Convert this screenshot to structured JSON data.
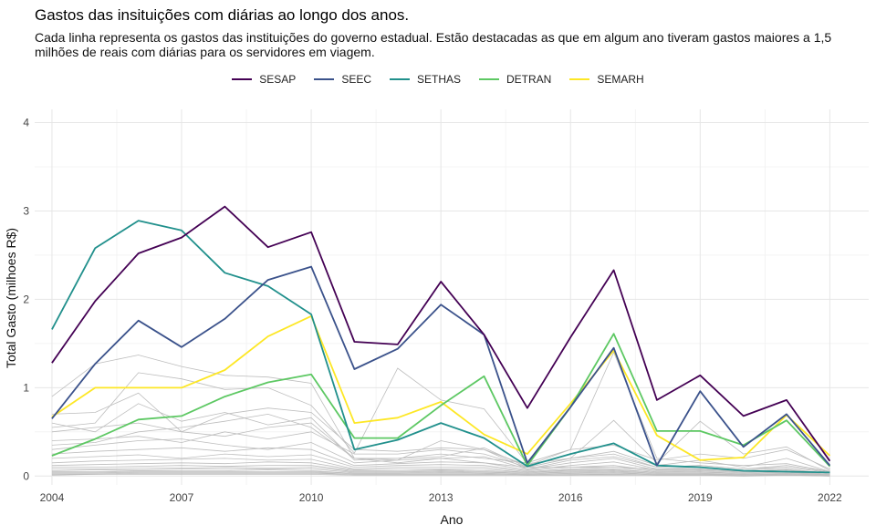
{
  "chart_data": {
    "type": "line",
    "title": "Gastos das insituições com diárias ao longo dos anos.",
    "subtitle": "Cada linha representa os gastos das instituições do governo estadual. Estão destacadas as que em algum ano tiveram gastos maiores a 1,5 milhões de reais com diárias para os servidores em viagem.",
    "xlabel": "Ano",
    "ylabel": "Total Gasto (milhoes R$)",
    "x": [
      2004,
      2005,
      2006,
      2007,
      2008,
      2009,
      2010,
      2011,
      2012,
      2013,
      2014,
      2015,
      2016,
      2017,
      2018,
      2019,
      2020,
      2021,
      2022
    ],
    "xticks": [
      2004,
      2007,
      2010,
      2013,
      2016,
      2019,
      2022
    ],
    "yticks": [
      0,
      1,
      2,
      3,
      4
    ],
    "xlim": [
      2003.6,
      2022.9
    ],
    "ylim": [
      -0.1,
      4.15
    ],
    "grid": true,
    "legend_position": "top",
    "series": [
      {
        "name": "SESAP",
        "color": "#440154",
        "values": [
          1.28,
          1.98,
          2.52,
          2.7,
          3.05,
          2.59,
          2.76,
          1.52,
          1.49,
          2.2,
          1.6,
          0.77,
          1.57,
          2.33,
          0.86,
          1.14,
          0.68,
          0.86,
          0.17
        ]
      },
      {
        "name": "SEEC",
        "color": "#3B528B",
        "values": [
          0.65,
          1.27,
          1.76,
          1.46,
          1.78,
          2.22,
          2.37,
          1.21,
          1.44,
          1.94,
          1.6,
          0.15,
          0.78,
          1.45,
          0.12,
          0.96,
          0.33,
          0.7,
          0.12
        ]
      },
      {
        "name": "SETHAS",
        "color": "#21908C",
        "values": [
          1.66,
          2.58,
          2.89,
          2.78,
          2.3,
          2.15,
          1.83,
          0.3,
          0.41,
          0.6,
          0.43,
          0.11,
          0.25,
          0.37,
          0.12,
          0.1,
          0.06,
          0.05,
          0.04
        ]
      },
      {
        "name": "DETRAN",
        "color": "#5DC863",
        "values": [
          0.23,
          0.42,
          0.64,
          0.68,
          0.9,
          1.06,
          1.15,
          0.43,
          0.43,
          0.8,
          1.13,
          0.12,
          0.78,
          1.61,
          0.51,
          0.51,
          0.35,
          0.63,
          0.11
        ]
      },
      {
        "name": "SEMARH",
        "color": "#FDE725",
        "values": [
          0.67,
          1.0,
          1.0,
          1.0,
          1.2,
          1.58,
          1.81,
          0.6,
          0.66,
          0.84,
          0.47,
          0.25,
          0.82,
          1.42,
          0.46,
          0.18,
          0.21,
          0.69,
          0.23
        ]
      }
    ],
    "background_series": [
      [
        0.9,
        1.27,
        1.37,
        1.24,
        1.14,
        1.12,
        1.05,
        0.2,
        0.15,
        0.2,
        0.15,
        0.1,
        0.1,
        0.1,
        0.08,
        0.08,
        0.05,
        0.05,
        0.04
      ],
      [
        0.55,
        0.6,
        1.17,
        1.1,
        0.98,
        1.0,
        0.8,
        0.26,
        1.22,
        0.86,
        0.76,
        0.14,
        0.2,
        0.63,
        0.15,
        0.62,
        0.25,
        0.33,
        0.06
      ],
      [
        0.7,
        0.72,
        0.94,
        0.5,
        0.7,
        0.77,
        0.72,
        0.3,
        0.28,
        0.32,
        0.3,
        0.12,
        0.3,
        1.4,
        0.2,
        0.15,
        0.12,
        0.14,
        0.05
      ],
      [
        0.5,
        0.55,
        0.6,
        0.5,
        0.45,
        0.55,
        0.6,
        0.2,
        0.2,
        0.25,
        0.2,
        0.15,
        0.3,
        0.35,
        0.18,
        0.25,
        0.2,
        0.3,
        0.08
      ],
      [
        0.4,
        0.42,
        0.45,
        0.38,
        0.5,
        0.42,
        0.5,
        0.25,
        0.25,
        0.3,
        0.25,
        0.1,
        0.2,
        0.25,
        0.1,
        0.12,
        0.08,
        0.12,
        0.05
      ],
      [
        0.3,
        0.35,
        0.4,
        0.42,
        0.35,
        0.3,
        0.38,
        0.15,
        0.18,
        0.2,
        0.22,
        0.08,
        0.15,
        0.2,
        0.08,
        0.1,
        0.06,
        0.1,
        0.04
      ],
      [
        0.25,
        0.28,
        0.3,
        0.32,
        0.28,
        0.32,
        0.3,
        0.12,
        0.14,
        0.16,
        0.15,
        0.07,
        0.12,
        0.16,
        0.07,
        0.08,
        0.05,
        0.08,
        0.03
      ],
      [
        0.2,
        0.22,
        0.24,
        0.2,
        0.25,
        0.22,
        0.24,
        0.1,
        0.12,
        0.13,
        0.12,
        0.06,
        0.1,
        0.12,
        0.06,
        0.07,
        0.05,
        0.07,
        0.03
      ],
      [
        0.15,
        0.17,
        0.18,
        0.19,
        0.2,
        0.18,
        0.19,
        0.08,
        0.1,
        0.1,
        0.1,
        0.05,
        0.08,
        0.1,
        0.05,
        0.06,
        0.04,
        0.06,
        0.02
      ],
      [
        0.12,
        0.13,
        0.14,
        0.15,
        0.14,
        0.16,
        0.15,
        0.07,
        0.08,
        0.08,
        0.08,
        0.04,
        0.07,
        0.08,
        0.04,
        0.05,
        0.03,
        0.05,
        0.02
      ],
      [
        0.1,
        0.1,
        0.11,
        0.12,
        0.11,
        0.12,
        0.12,
        0.06,
        0.06,
        0.07,
        0.06,
        0.04,
        0.06,
        0.07,
        0.04,
        0.04,
        0.03,
        0.04,
        0.02
      ],
      [
        0.08,
        0.08,
        0.09,
        0.09,
        0.1,
        0.09,
        0.1,
        0.05,
        0.05,
        0.06,
        0.05,
        0.03,
        0.05,
        0.06,
        0.03,
        0.03,
        0.02,
        0.03,
        0.02
      ],
      [
        0.06,
        0.07,
        0.07,
        0.08,
        0.08,
        0.08,
        0.08,
        0.04,
        0.04,
        0.05,
        0.04,
        0.03,
        0.04,
        0.05,
        0.03,
        0.03,
        0.02,
        0.03,
        0.01
      ],
      [
        0.05,
        0.05,
        0.06,
        0.06,
        0.06,
        0.07,
        0.06,
        0.03,
        0.03,
        0.04,
        0.03,
        0.02,
        0.03,
        0.04,
        0.02,
        0.02,
        0.02,
        0.02,
        0.01
      ],
      [
        0.04,
        0.04,
        0.05,
        0.05,
        0.05,
        0.05,
        0.05,
        0.03,
        0.03,
        0.03,
        0.03,
        0.02,
        0.03,
        0.03,
        0.02,
        0.02,
        0.01,
        0.02,
        0.01
      ],
      [
        0.03,
        0.03,
        0.04,
        0.04,
        0.04,
        0.04,
        0.04,
        0.02,
        0.02,
        0.02,
        0.02,
        0.01,
        0.02,
        0.02,
        0.01,
        0.01,
        0.01,
        0.01,
        0.01
      ],
      [
        0.02,
        0.02,
        0.03,
        0.03,
        0.03,
        0.03,
        0.03,
        0.02,
        0.02,
        0.02,
        0.02,
        0.01,
        0.01,
        0.02,
        0.01,
        0.01,
        0.01,
        0.01,
        0.0
      ],
      [
        0.01,
        0.02,
        0.02,
        0.02,
        0.02,
        0.02,
        0.02,
        0.01,
        0.01,
        0.01,
        0.01,
        0.01,
        0.01,
        0.01,
        0.01,
        0.01,
        0.0,
        0.01,
        0.0
      ],
      [
        0.6,
        0.5,
        0.82,
        0.62,
        0.72,
        0.58,
        0.66,
        0.18,
        0.2,
        0.22,
        0.32,
        0.1,
        0.2,
        0.28,
        0.12,
        0.18,
        0.1,
        0.2,
        0.05
      ],
      [
        0.35,
        0.38,
        0.5,
        0.55,
        0.62,
        0.7,
        0.55,
        0.2,
        0.18,
        0.4,
        0.3,
        0.08,
        0.18,
        0.22,
        0.1,
        0.12,
        0.08,
        0.1,
        0.04
      ]
    ]
  }
}
